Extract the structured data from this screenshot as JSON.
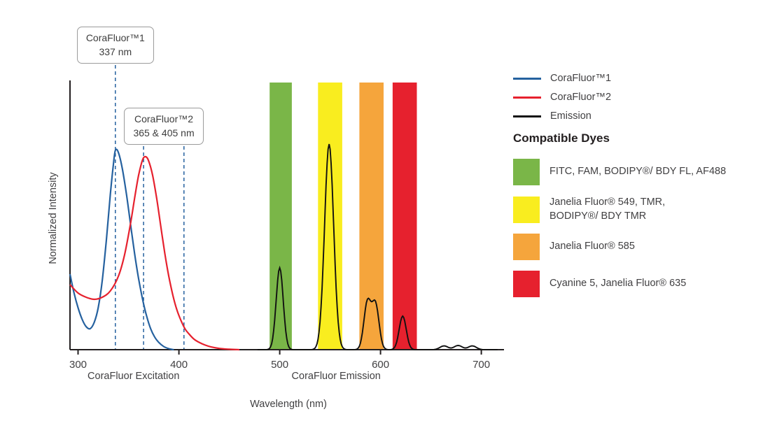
{
  "colors": {
    "blue": "#25619f",
    "red": "#e6212e",
    "black": "#111111",
    "axis": "#231f20",
    "text": "#414042",
    "green_band": "#7ab648",
    "yellow_band": "#f9ed1f",
    "orange_band": "#f5a53c",
    "red_band": "#e6212e"
  },
  "chart_data": {
    "type": "line",
    "title": "",
    "xlabel": "Wavelength (nm)",
    "ylabel": "Normalized Intensity",
    "x_ticks": [
      300,
      400,
      500,
      600,
      700
    ],
    "x_range": [
      292,
      719
    ],
    "ylim": [
      0,
      1.27
    ],
    "grid": false,
    "legend_position": "right",
    "excitation_max_markers_nm": [
      337,
      365,
      405
    ],
    "axis_region_labels": [
      {
        "label": "CoraFluor Excitation",
        "center_nm": 355
      },
      {
        "label": "CoraFluor Emission",
        "center_nm": 556
      }
    ],
    "series": [
      {
        "name": "CoraFluor™1",
        "role": "excitation",
        "color_key": "blue",
        "x": [
          292,
          296,
          300,
          304,
          308,
          312,
          316,
          320,
          324,
          328,
          332,
          335,
          337,
          340,
          344,
          348,
          352,
          356,
          360,
          364,
          368,
          372,
          376,
          380,
          385,
          390,
          395
        ],
        "y": [
          0.36,
          0.27,
          0.2,
          0.145,
          0.11,
          0.1,
          0.13,
          0.2,
          0.33,
          0.52,
          0.74,
          0.88,
          0.95,
          0.94,
          0.86,
          0.74,
          0.6,
          0.46,
          0.34,
          0.24,
          0.16,
          0.1,
          0.06,
          0.035,
          0.015,
          0.005,
          0
        ]
      },
      {
        "name": "CoraFluor™2",
        "role": "excitation",
        "color_key": "red",
        "x": [
          292,
          300,
          308,
          316,
          324,
          332,
          340,
          346,
          352,
          356,
          360,
          364,
          367,
          370,
          374,
          378,
          382,
          386,
          390,
          394,
          398,
          402,
          406,
          410,
          415,
          420,
          426,
          432,
          440,
          450,
          460
        ],
        "y": [
          0.31,
          0.27,
          0.25,
          0.24,
          0.25,
          0.28,
          0.35,
          0.45,
          0.6,
          0.72,
          0.83,
          0.905,
          0.92,
          0.9,
          0.83,
          0.72,
          0.59,
          0.46,
          0.35,
          0.26,
          0.19,
          0.14,
          0.1,
          0.075,
          0.05,
          0.035,
          0.022,
          0.013,
          0.006,
          0.002,
          0
        ]
      },
      {
        "name": "Emission",
        "role": "emission",
        "color_key": "black",
        "x_draw_range": [
          478,
          716
        ],
        "peaks": [
          {
            "center_nm": 500,
            "height": 0.39,
            "sigma_nm": 3.5
          },
          {
            "center_nm": 549,
            "height": 0.98,
            "sigma_nm": 4.5
          },
          {
            "center_nm": 587,
            "height": 0.225,
            "sigma_nm": 3.5
          },
          {
            "center_nm": 595,
            "height": 0.215,
            "sigma_nm": 3.5
          },
          {
            "center_nm": 622,
            "height": 0.16,
            "sigma_nm": 3.5
          },
          {
            "center_nm": 663,
            "height": 0.018,
            "sigma_nm": 4
          },
          {
            "center_nm": 677,
            "height": 0.02,
            "sigma_nm": 4
          },
          {
            "center_nm": 691,
            "height": 0.018,
            "sigma_nm": 4
          }
        ]
      }
    ],
    "filter_bands": [
      {
        "name": "green",
        "range_nm": [
          490,
          512
        ],
        "color_key": "green_band",
        "dyes": "FITC, FAM, BODIPY®/ BDY FL, AF488"
      },
      {
        "name": "yellow",
        "range_nm": [
          538,
          562
        ],
        "color_key": "yellow_band",
        "dyes": "Janelia Fluor® 549, TMR, BODIPY®/ BDY TMR"
      },
      {
        "name": "orange",
        "range_nm": [
          579,
          603
        ],
        "color_key": "orange_band",
        "dyes": "Janelia Fluor® 585"
      },
      {
        "name": "red",
        "range_nm": [
          612,
          636
        ],
        "color_key": "red_band",
        "dyes": "Cyanine 5, Janelia Fluor® 635"
      }
    ]
  },
  "callouts": [
    {
      "title": "CoraFluor™1",
      "value": "337 nm",
      "lines_nm": [
        337
      ]
    },
    {
      "title": "CoraFluor™2",
      "value": "365 & 405 nm",
      "lines_nm": [
        365,
        405
      ]
    }
  ],
  "legend": {
    "lines": [
      {
        "label": "CoraFluor™1",
        "color_key": "blue"
      },
      {
        "label": "CoraFluor™2",
        "color_key": "red"
      },
      {
        "label": "Emission",
        "color_key": "black"
      }
    ],
    "dyes_heading": "Compatible Dyes",
    "dyes": [
      {
        "label": "FITC, FAM, BODIPY®/ BDY FL, AF488",
        "color_key": "green_band"
      },
      {
        "label": "Janelia Fluor® 549, TMR,\nBODIPY®/ BDY TMR",
        "color_key": "yellow_band"
      },
      {
        "label": "Janelia Fluor® 585",
        "color_key": "orange_band"
      },
      {
        "label": "Cyanine 5, Janelia Fluor® 635",
        "color_key": "red_band"
      }
    ]
  }
}
